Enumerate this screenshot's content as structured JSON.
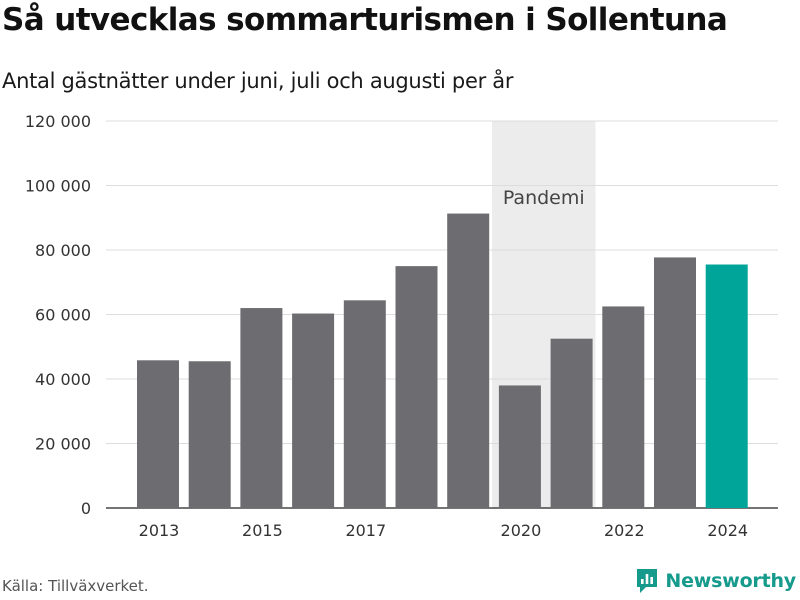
{
  "title": "Så utvecklas sommarturismen i Sollentuna",
  "subtitle": "Antal gästnätter under juni, juli och augusti per år",
  "source": "Källa: Tillväxverket.",
  "brand": {
    "name": "Newsworthy",
    "icon": "newsworthy-logo-icon",
    "color": "#159a8c"
  },
  "colors": {
    "bar": "#6d6c70",
    "highlight": "#00a59a",
    "grid": "#dddddd",
    "band": "#ececec"
  },
  "chart_data": {
    "type": "bar",
    "categories": [
      "2013",
      "2014",
      "2015",
      "2016",
      "2017",
      "2018",
      "2019",
      "2020",
      "2021",
      "2022",
      "2023",
      "2024"
    ],
    "values": [
      45800,
      45500,
      62000,
      60300,
      64400,
      75000,
      91300,
      38000,
      52500,
      62500,
      77700,
      75500
    ],
    "highlight_category": "2024",
    "xtick_labels": [
      "2013",
      "2015",
      "2017",
      "2020",
      "2022",
      "2024"
    ],
    "ytick_labels": [
      "0",
      "20 000",
      "40 000",
      "60 000",
      "80 000",
      "100 000",
      "120 000"
    ],
    "yticks": [
      0,
      20000,
      40000,
      60000,
      80000,
      100000,
      120000
    ],
    "ylim": [
      0,
      120000
    ],
    "grid": true,
    "annotation": {
      "label": "Pandemi",
      "from": "2020",
      "to": "2021"
    },
    "xlabel": "",
    "ylabel": ""
  }
}
